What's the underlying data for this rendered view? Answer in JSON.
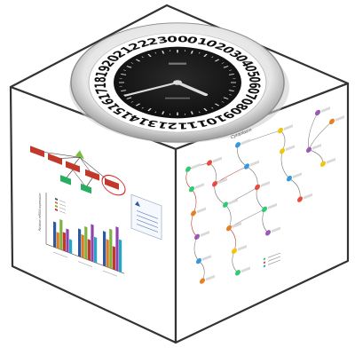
{
  "colors": {
    "edge": "#333333",
    "top_face": "#ffffff",
    "left_face": "#ffffff",
    "right_face": "#ffffff",
    "clock_face": "#1a1a1a",
    "clock_ring": "#ffffff",
    "tree_node": "#c0392b",
    "tree_leaf": "#27ae60",
    "tree_root": "#7dbb3c",
    "highlight_circle": "#d93030",
    "bar_palette": [
      "#2c5aa0",
      "#e07b24",
      "#7fb341",
      "#c0392b",
      "#8e44ad",
      "#27a4c8"
    ],
    "pathway_palette": [
      "#2ecc71",
      "#e74c3c",
      "#3498db",
      "#f1c40f",
      "#9b59b6",
      "#e67e22"
    ]
  },
  "clock": {
    "numbers": [
      "00",
      "01",
      "02",
      "03",
      "04",
      "05",
      "06",
      "07",
      "08",
      "09",
      "10",
      "11",
      "12",
      "13",
      "14",
      "15",
      "16",
      "17",
      "18",
      "19",
      "20",
      "21",
      "22",
      "23"
    ],
    "time_hour": 8.5,
    "time_minute": 41
  },
  "left_face": {
    "chart_ylabel": "Relative mRNA expression",
    "chart_groups": [
      [
        0.55,
        0.35,
        0.65,
        0.4,
        0.5,
        0.3
      ],
      [
        0.6,
        0.5,
        0.7,
        0.45,
        0.8,
        0.55
      ],
      [
        0.75,
        0.6,
        0.85,
        0.5,
        0.95,
        0.7
      ]
    ]
  },
  "right_face": {
    "title": "Cytoplasm"
  }
}
